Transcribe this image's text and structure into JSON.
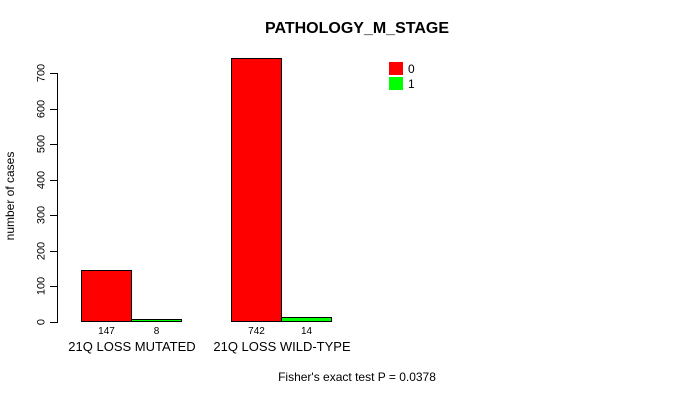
{
  "window": {
    "background_color": "#ffffff",
    "text_color": "#000000"
  },
  "chart_data": {
    "type": "bar",
    "title": "PATHOLOGY_M_STAGE",
    "xlabel": "",
    "ylabel": "number of cases",
    "categories": [
      "21Q LOSS MUTATED",
      "21Q LOSS WILD-TYPE"
    ],
    "series": [
      {
        "name": "0",
        "color": "#ff0000",
        "values": [
          147,
          742
        ]
      },
      {
        "name": "1",
        "color": "#00ff00",
        "values": [
          8,
          14
        ]
      }
    ],
    "value_labels": [
      [
        "147",
        "8"
      ],
      [
        "742",
        "14"
      ]
    ],
    "yticks": [
      "0",
      "100",
      "200",
      "300",
      "400",
      "500",
      "600",
      "700"
    ],
    "ylim": [
      0,
      700
    ],
    "grid": false,
    "legend_position": "top-right",
    "bar_border_color": "#000000",
    "axis_color": "#000000",
    "annotation": "Fisher's exact test P = 0.0378"
  }
}
